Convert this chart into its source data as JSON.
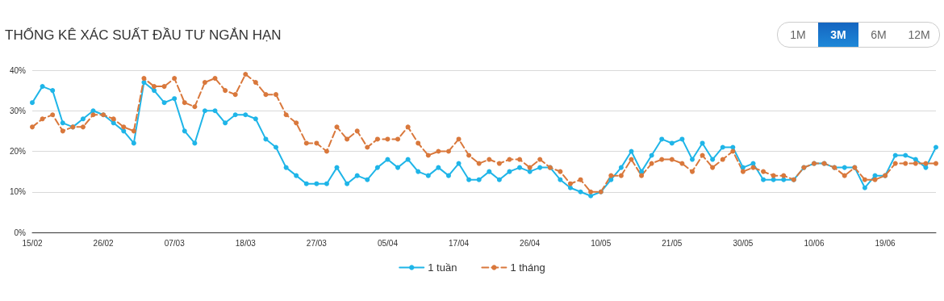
{
  "chart_data": {
    "type": "line",
    "title": "THỐNG KÊ XÁC SUẤT ĐẦU TƯ NGẮN HẠN",
    "annotations": [
      "1M",
      "3M",
      "6M",
      "12M"
    ],
    "categories": [
      "15/02",
      null,
      null,
      null,
      null,
      null,
      null,
      "26/02",
      null,
      null,
      null,
      null,
      null,
      null,
      "07/03",
      null,
      null,
      null,
      null,
      null,
      null,
      "18/03",
      null,
      null,
      null,
      null,
      null,
      null,
      "27/03",
      null,
      null,
      null,
      null,
      null,
      null,
      "05/04",
      null,
      null,
      null,
      null,
      null,
      null,
      "17/04",
      null,
      null,
      null,
      null,
      null,
      null,
      "26/04",
      null,
      null,
      null,
      null,
      null,
      null,
      "10/05",
      null,
      null,
      null,
      null,
      null,
      null,
      "21/05",
      null,
      null,
      null,
      null,
      null,
      null,
      "30/05",
      null,
      null,
      null,
      null,
      null,
      null,
      "10/06",
      null,
      null,
      null,
      null,
      null,
      null,
      "19/06",
      null,
      null,
      null,
      null,
      null
    ],
    "series": [
      {
        "name": "1 tuần",
        "color": "#1fb5e8",
        "line_style": "solid",
        "values": [
          32,
          36,
          35,
          27,
          26,
          28,
          30,
          29,
          27,
          25,
          22,
          37,
          35,
          32,
          33,
          25,
          22,
          30,
          30,
          27,
          29,
          29,
          28,
          23,
          21,
          16,
          14,
          12,
          12,
          12,
          16,
          12,
          14,
          13,
          16,
          18,
          16,
          18,
          15,
          14,
          16,
          14,
          17,
          13,
          13,
          15,
          13,
          15,
          16,
          15,
          16,
          16,
          13,
          11,
          10,
          9,
          10,
          13,
          16,
          20,
          15,
          19,
          23,
          22,
          23,
          18,
          22,
          18,
          21,
          21,
          16,
          17,
          13,
          13,
          13,
          13,
          16,
          17,
          17,
          16,
          16,
          16,
          11,
          14,
          14,
          19,
          19,
          18,
          16,
          21
        ]
      },
      {
        "name": "1 tháng",
        "color": "#d9783c",
        "line_style": "dashed",
        "values": [
          26,
          28,
          29,
          25,
          26,
          26,
          29,
          29,
          28,
          26,
          25,
          38,
          36,
          36,
          38,
          32,
          31,
          37,
          38,
          35,
          34,
          39,
          37,
          34,
          34,
          29,
          27,
          22,
          22,
          20,
          26,
          23,
          25,
          21,
          23,
          23,
          23,
          26,
          22,
          19,
          20,
          20,
          23,
          19,
          17,
          18,
          17,
          18,
          18,
          16,
          18,
          16,
          15,
          12,
          13,
          10,
          10,
          14,
          14,
          18,
          14,
          17,
          18,
          18,
          17,
          15,
          19,
          16,
          18,
          20,
          15,
          16,
          15,
          14,
          14,
          13,
          16,
          17,
          17,
          16,
          14,
          16,
          13,
          13,
          14,
          17,
          17,
          17,
          17,
          17
        ]
      }
    ],
    "ylim": [
      0,
      40
    ],
    "yticks": [
      {
        "value": 0,
        "label": "0%"
      },
      {
        "value": 10,
        "label": "10%"
      },
      {
        "value": 20,
        "label": "20%"
      },
      {
        "value": 30,
        "label": "30%"
      },
      {
        "value": 40,
        "label": "40%"
      }
    ],
    "grid": "y",
    "legend": "bottom",
    "marker": "circle"
  }
}
